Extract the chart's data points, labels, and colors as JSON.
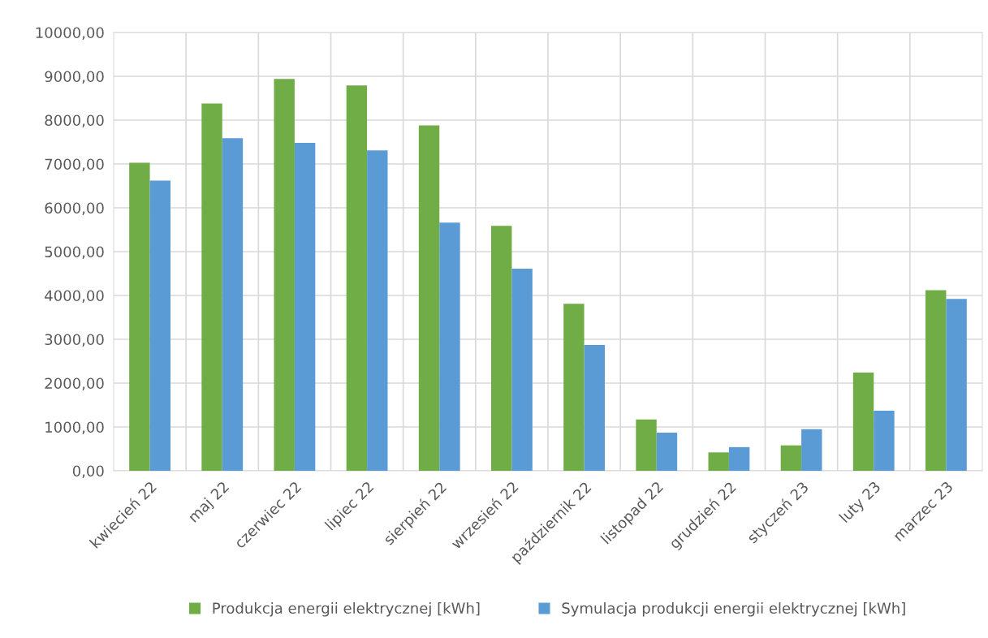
{
  "chart_data": {
    "type": "bar",
    "categories": [
      "kwiecień 22",
      "maj 22",
      "czerwiec 22",
      "lipiec 22",
      "sierpień 22",
      "wrzesień 22",
      "październik 22",
      "listopad 22",
      "grudzień 22",
      "styczeń 23",
      "luty 23",
      "marzec 23"
    ],
    "series": [
      {
        "name": "Produkcja energii elektrycznej [kWh]",
        "color": "#70ad47",
        "values": [
          7030,
          8380,
          8940,
          8790,
          7880,
          5590,
          3810,
          1170,
          420,
          580,
          2240,
          4120
        ]
      },
      {
        "name": "Symulacja produkcji energii elektrycznej [kWh]",
        "color": "#5b9bd5",
        "values": [
          6620,
          7590,
          7480,
          7310,
          5660,
          4610,
          2870,
          870,
          540,
          950,
          1370,
          3920
        ]
      }
    ],
    "ylim": [
      0,
      10000
    ],
    "yticks": [
      {
        "value": 0,
        "label": "0,00"
      },
      {
        "value": 1000,
        "label": "1000,00"
      },
      {
        "value": 2000,
        "label": "2000,00"
      },
      {
        "value": 3000,
        "label": "3000,00"
      },
      {
        "value": 4000,
        "label": "4000,00"
      },
      {
        "value": 5000,
        "label": "5000,00"
      },
      {
        "value": 6000,
        "label": "6000,00"
      },
      {
        "value": 7000,
        "label": "7000,00"
      },
      {
        "value": 8000,
        "label": "8000,00"
      },
      {
        "value": 9000,
        "label": "9000,00"
      },
      {
        "value": 10000,
        "label": "10000,00"
      }
    ],
    "grid": true,
    "legend": "bottom"
  }
}
